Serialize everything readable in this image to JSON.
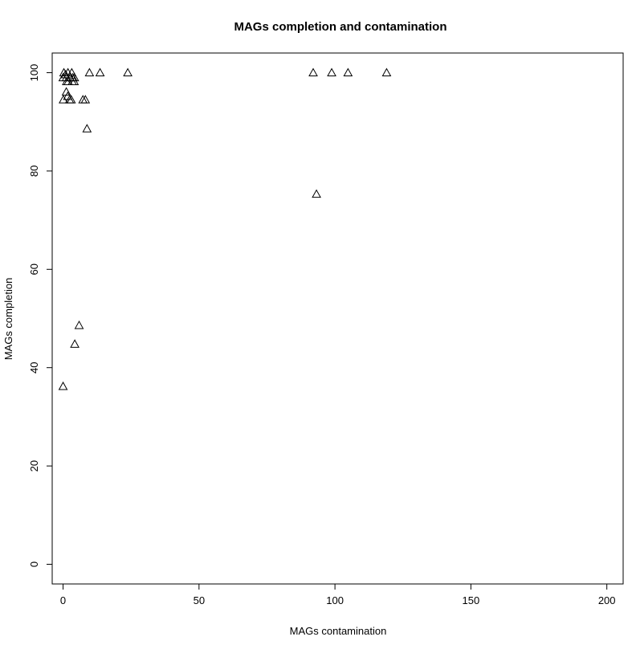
{
  "chart_data": {
    "type": "scatter",
    "title": "MAGs completion and contamination",
    "xlabel": "MAGs contamination",
    "ylabel": "MAGs completion",
    "xlim": [
      -4,
      206
    ],
    "ylim": [
      -4,
      104
    ],
    "xticks": [
      0,
      50,
      100,
      150,
      200
    ],
    "yticks": [
      0,
      20,
      40,
      60,
      80,
      100
    ],
    "marker": "open-triangle",
    "grid": false,
    "points": [
      {
        "x": 0.0,
        "y": 99.0
      },
      {
        "x": 0.3,
        "y": 100.0
      },
      {
        "x": 0.9,
        "y": 99.6
      },
      {
        "x": 1.2,
        "y": 99.0
      },
      {
        "x": 1.8,
        "y": 100.0
      },
      {
        "x": 2.6,
        "y": 99.0
      },
      {
        "x": 3.2,
        "y": 100.0
      },
      {
        "x": 3.6,
        "y": 99.0
      },
      {
        "x": 4.2,
        "y": 99.0
      },
      {
        "x": 1.3,
        "y": 98.2
      },
      {
        "x": 1.9,
        "y": 98.2
      },
      {
        "x": 3.4,
        "y": 98.2
      },
      {
        "x": 4.1,
        "y": 98.2
      },
      {
        "x": 1.2,
        "y": 96.1
      },
      {
        "x": 1.7,
        "y": 95.2
      },
      {
        "x": 0.1,
        "y": 94.5
      },
      {
        "x": 2.4,
        "y": 94.5
      },
      {
        "x": 3.0,
        "y": 94.5
      },
      {
        "x": 7.3,
        "y": 94.5
      },
      {
        "x": 8.2,
        "y": 94.5
      },
      {
        "x": 8.8,
        "y": 88.6
      },
      {
        "x": 9.7,
        "y": 100.0
      },
      {
        "x": 13.6,
        "y": 100.0
      },
      {
        "x": 23.8,
        "y": 100.0
      },
      {
        "x": 92.0,
        "y": 100.0
      },
      {
        "x": 98.8,
        "y": 100.0
      },
      {
        "x": 104.8,
        "y": 100.0
      },
      {
        "x": 119.0,
        "y": 100.0
      },
      {
        "x": 93.2,
        "y": 75.3
      },
      {
        "x": 5.9,
        "y": 48.6
      },
      {
        "x": 4.3,
        "y": 44.8
      },
      {
        "x": 0.0,
        "y": 36.2
      }
    ]
  }
}
